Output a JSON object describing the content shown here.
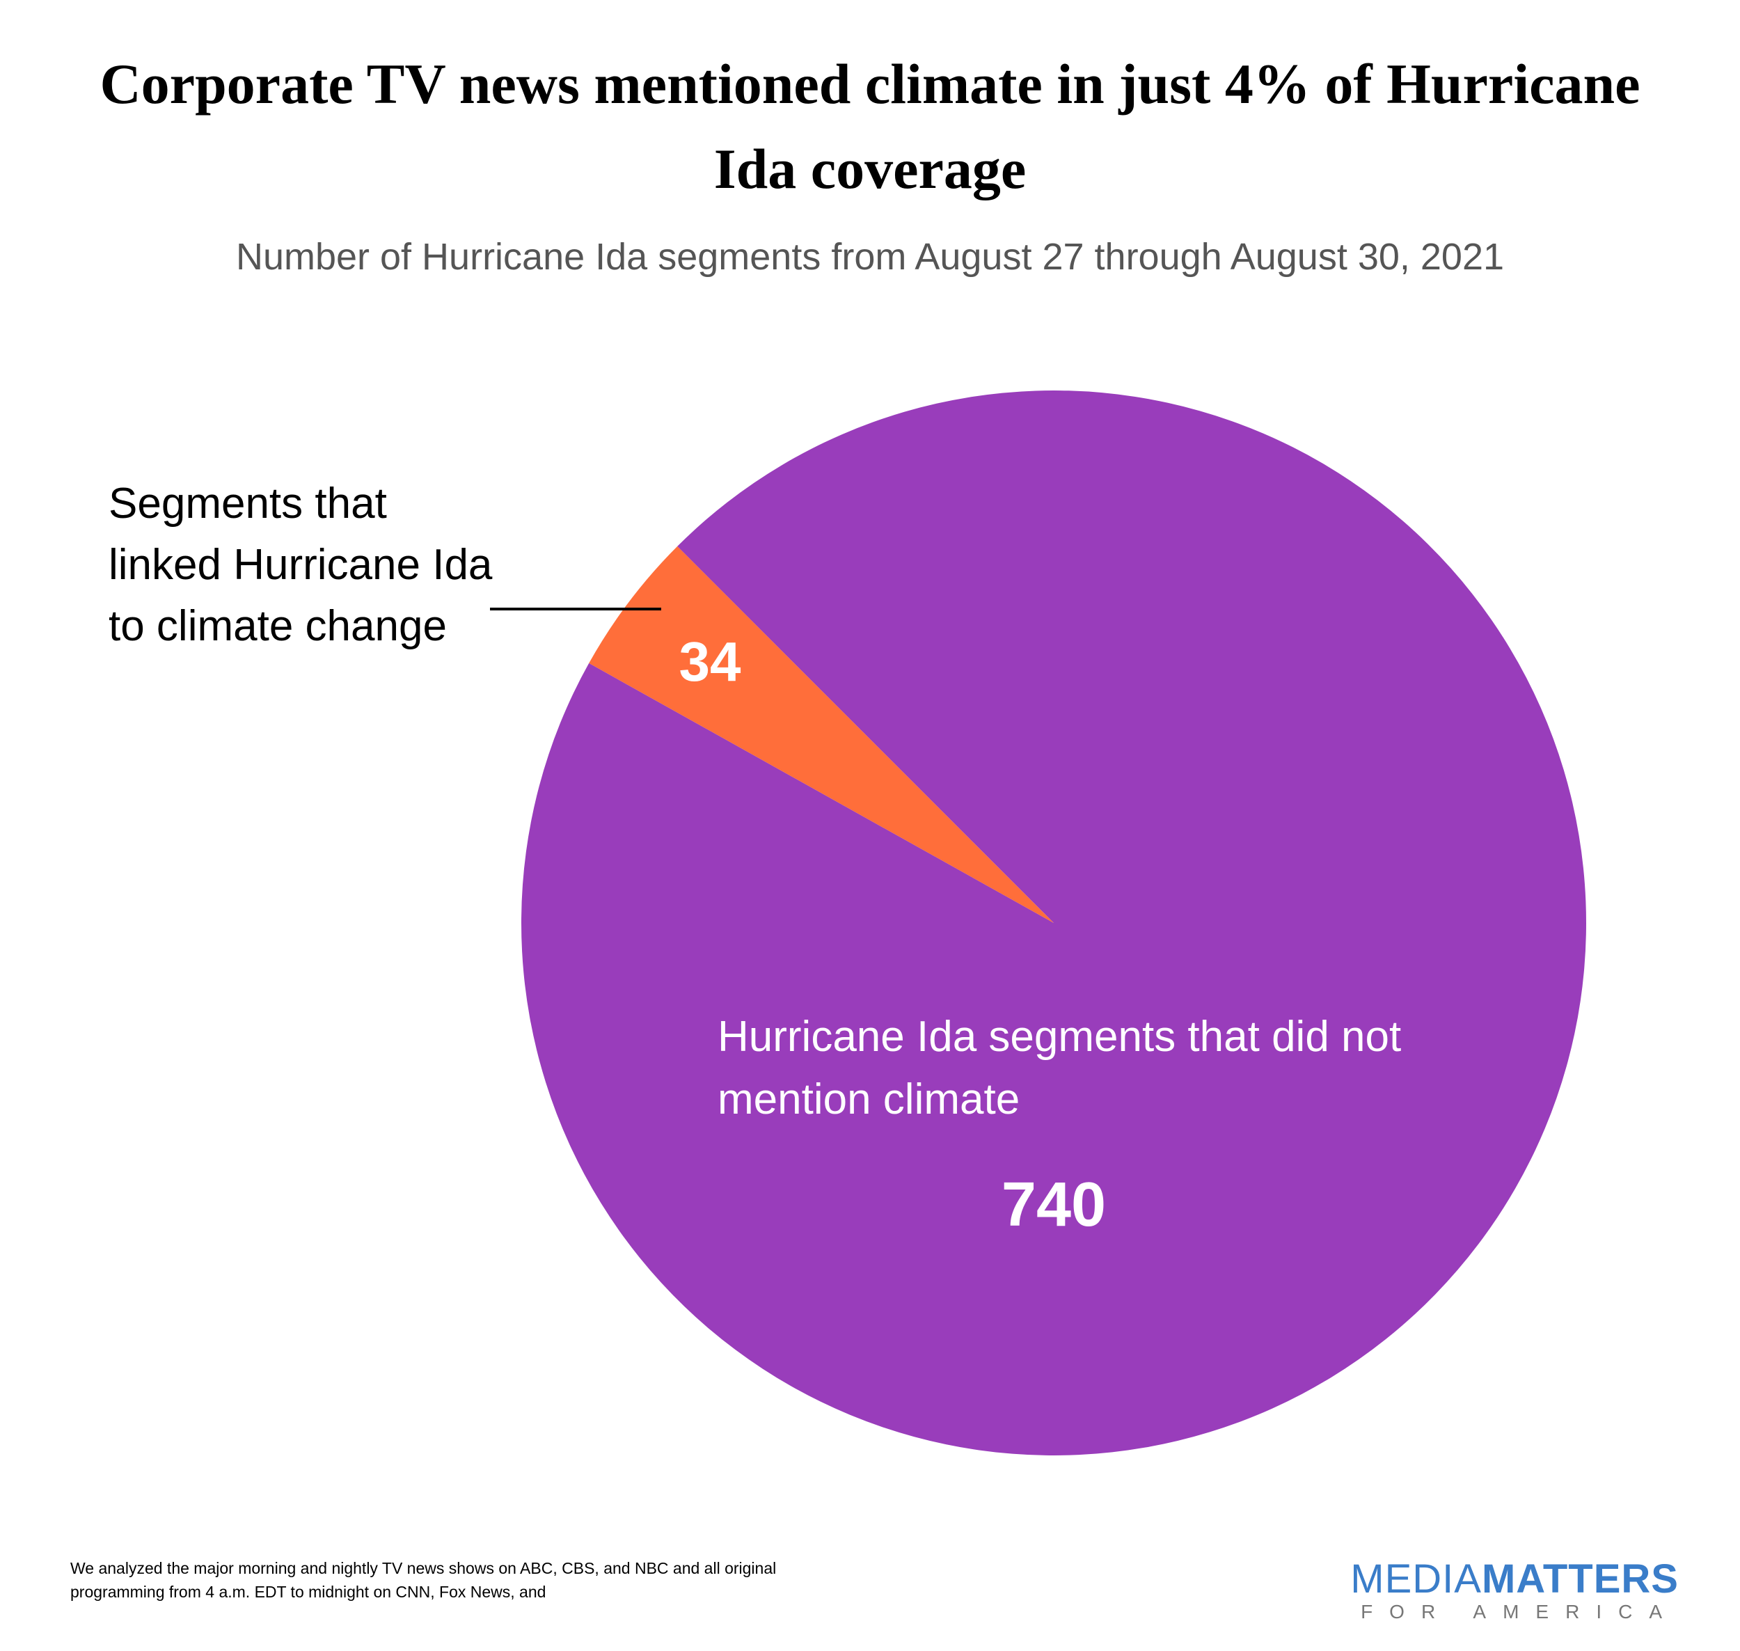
{
  "chart_data": {
    "type": "pie",
    "title": "Corporate TV news mentioned climate in just 4% of Hurricane Ida coverage",
    "subtitle": "Number of Hurricane Ida segments from August 27 through August 30, 2021",
    "categories": [
      "Segments that linked Hurricane Ida to climate change",
      "Hurricane Ida segments that did not mention climate"
    ],
    "values": [
      34,
      740
    ],
    "colors": [
      "#ff6e3a",
      "#993dbb"
    ],
    "footnote": "We analyzed the major morning and nightly TV news shows on ABC, CBS, and NBC and all original programming from 4 a.m. EDT to midnight on CNN, Fox News, and",
    "logo": [
      "MEDIA",
      "MATTERS",
      "FOR AMERICA"
    ]
  }
}
